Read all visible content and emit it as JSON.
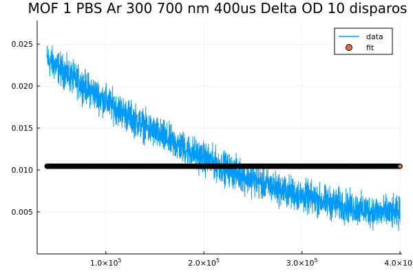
{
  "chart_data": {
    "type": "line",
    "title": "MOF 1 PBS Ar 300 700 nm 400us Delta OD 10 disparos",
    "xlabel": "",
    "ylabel": "",
    "xlim": [
      30000,
      402000
    ],
    "ylim": [
      0.0,
      0.0278
    ],
    "x_ticks": [
      {
        "value": 100000,
        "mant": "1.0×10",
        "exp": "5"
      },
      {
        "value": 200000,
        "mant": "2.0×10",
        "exp": "5"
      },
      {
        "value": 300000,
        "mant": "3.0×10",
        "exp": "5"
      },
      {
        "value": 400000,
        "mant": "4.0×10",
        "exp": "5"
      }
    ],
    "y_ticks": [
      {
        "value": 0.005,
        "label": "0.005"
      },
      {
        "value": 0.01,
        "label": "0.010"
      },
      {
        "value": 0.015,
        "label": "0.015"
      },
      {
        "value": 0.02,
        "label": "0.020"
      },
      {
        "value": 0.025,
        "label": "0.025"
      }
    ],
    "grid": true,
    "legend_position": "top-right",
    "series": [
      {
        "name": "data",
        "kind": "line",
        "color": "#009AFA",
        "x_start": 40000,
        "x_end": 400000,
        "trend_x": [
          40000,
          60000,
          80000,
          100000,
          120000,
          140000,
          160000,
          180000,
          200000,
          220000,
          240000,
          260000,
          280000,
          300000,
          320000,
          340000,
          360000,
          380000,
          400000
        ],
        "trend_y": [
          0.0232,
          0.0215,
          0.0198,
          0.0182,
          0.0167,
          0.0152,
          0.0138,
          0.0126,
          0.0114,
          0.0103,
          0.0093,
          0.0084,
          0.0076,
          0.0069,
          0.0063,
          0.0058,
          0.0053,
          0.005,
          0.0048
        ],
        "noise_amplitude": 0.002
      },
      {
        "name": "fit",
        "kind": "scatter",
        "color": "#E26F46",
        "x_start": 40000,
        "x_end": 400000,
        "y": 0.01045
      }
    ]
  }
}
